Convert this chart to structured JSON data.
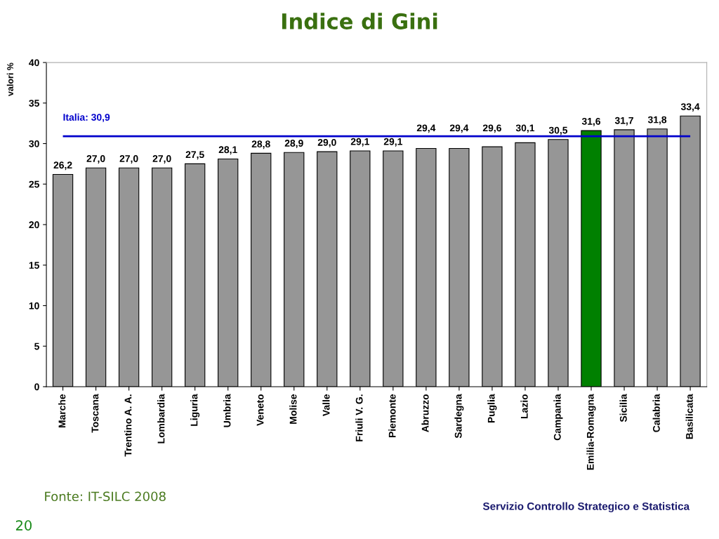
{
  "chart_data": {
    "type": "bar",
    "title": "Indice di Gini",
    "ylabel": "valori %",
    "categories": [
      "Marche",
      "Toscana",
      "Trentino A. A.",
      "Lombardia",
      "Liguria",
      "Umbria",
      "Veneto",
      "Molise",
      "Valle",
      "Friuli V. G.",
      "Piemonte",
      "Abruzzo",
      "Sardegna",
      "Puglia",
      "Lazio",
      "Campania",
      "Emilia-Romagna",
      "Sicilia",
      "Calabria",
      "Basilicata"
    ],
    "values": [
      26.2,
      27.0,
      27.0,
      27.0,
      27.5,
      28.1,
      28.8,
      28.9,
      29.0,
      29.1,
      29.1,
      29.4,
      29.4,
      29.6,
      30.1,
      30.5,
      31.6,
      31.7,
      31.8,
      33.4
    ],
    "colors": [
      "#969696",
      "#969696",
      "#969696",
      "#969696",
      "#969696",
      "#969696",
      "#969696",
      "#969696",
      "#969696",
      "#969696",
      "#969696",
      "#969696",
      "#969696",
      "#969696",
      "#969696",
      "#969696",
      "#008000",
      "#969696",
      "#969696",
      "#969696"
    ],
    "value_labels": [
      "26,2",
      "27,0",
      "27,0",
      "27,0",
      "27,5",
      "28,1",
      "28,8",
      "28,9",
      "29,0",
      "29,1",
      "29,1",
      "29,4",
      "29,4",
      "29,6",
      "30,1",
      "30,5",
      "31,6",
      "31,7",
      "31,8",
      "33,4"
    ],
    "ylim": [
      0,
      40
    ],
    "yticks": [
      0,
      5,
      10,
      15,
      20,
      25,
      30,
      35,
      40
    ],
    "ref_lines": [
      {
        "axis": "y",
        "value": 30.9,
        "label": "Italia: 30,9",
        "color": "#0000cc",
        "line_style": "solid"
      }
    ],
    "annotations": [
      "Fonte: IT-SILC 2008",
      "Servizio Controllo Strategico e Statistica",
      "20"
    ]
  }
}
